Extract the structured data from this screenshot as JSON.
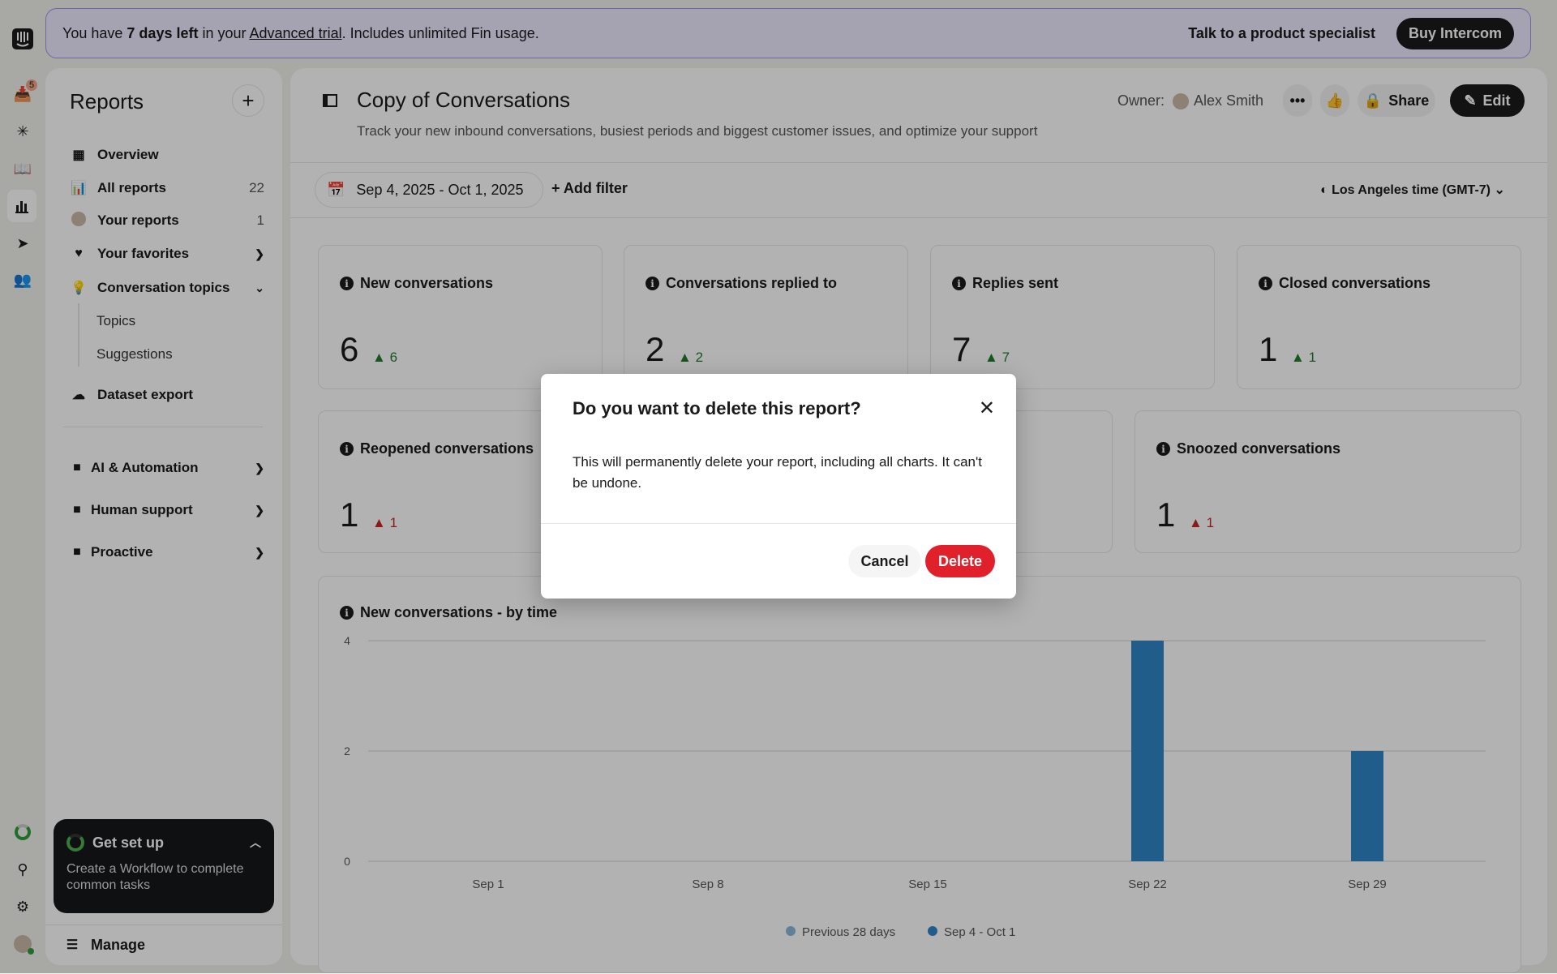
{
  "rail": {
    "inbox_badge": "5",
    "icons": [
      "intercom-logo",
      "inbox-icon",
      "fin-icon",
      "knowledge-icon",
      "reports-icon",
      "outbound-icon",
      "contacts-icon",
      "setup-progress-icon",
      "search-icon",
      "settings-icon",
      "avatar"
    ]
  },
  "banner": {
    "pre": "You have ",
    "bold": "7 days left",
    "mid": " in your ",
    "link": "Advanced trial",
    "post": ". Includes unlimited Fin usage.",
    "talk": "Talk to a product specialist",
    "buy": "Buy Intercom"
  },
  "sidebar": {
    "title": "Reports",
    "items": [
      {
        "label": "Overview",
        "icon": "grid-icon"
      },
      {
        "label": "All reports",
        "count": "22",
        "icon": "bar-chart-icon"
      },
      {
        "label": "Your reports",
        "count": "1",
        "icon": "avatar"
      },
      {
        "label": "Your favorites",
        "icon": "heart-icon"
      },
      {
        "label": "Conversation topics",
        "icon": "lightbulb-icon"
      }
    ],
    "subitems": [
      "Topics",
      "Suggestions"
    ],
    "dataset": "Dataset export",
    "folders": [
      "AI & Automation",
      "Human support",
      "Proactive"
    ],
    "setup": {
      "title": "Get set up",
      "desc": "Create a Workflow to complete common tasks"
    },
    "manage": "Manage"
  },
  "header": {
    "title": "Copy of Conversations",
    "subtitle": "Track your new inbound conversations, busiest periods and biggest customer issues, and optimize your support",
    "owner_label": "Owner:",
    "owner": "Alex Smith",
    "share": "Share",
    "edit": "Edit"
  },
  "filters": {
    "date_range": "Sep 4, 2025 - Oct 1, 2025",
    "add_filter": "Add filter",
    "timezone": "Los Angeles time (GMT-7)"
  },
  "cards": [
    {
      "title": "New conversations",
      "value": "6",
      "delta": "6",
      "trend": "up"
    },
    {
      "title": "Conversations replied to",
      "value": "2",
      "delta": "2",
      "trend": "up"
    },
    {
      "title": "Replies sent",
      "value": "7",
      "delta": "7",
      "trend": "up"
    },
    {
      "title": "Closed conversations",
      "value": "1",
      "delta": "1",
      "trend": "up"
    },
    {
      "title": "Reopened conversations",
      "value": "1",
      "delta": "1",
      "trend": "down"
    },
    {
      "title": "Snoozed conversations",
      "value": "1",
      "delta": "1",
      "trend": "down"
    }
  ],
  "colors": {
    "up": "#1d7f2a",
    "down": "#c62828",
    "bar": "#2f86c8",
    "previous": "#8ab8dc",
    "delete": "#e0202a"
  },
  "chart_data": {
    "type": "bar",
    "title": "New conversations - by time",
    "categories": [
      "Sep 1",
      "Sep 8",
      "Sep 15",
      "Sep 22",
      "Sep 29"
    ],
    "series": [
      {
        "name": "Previous 28 days",
        "values": [
          0,
          0,
          0,
          0,
          0
        ]
      },
      {
        "name": "Sep 4 - Oct 1",
        "values": [
          0,
          0,
          0,
          4,
          2
        ]
      }
    ],
    "yticks": [
      0,
      2,
      4
    ],
    "ylim": [
      0,
      4
    ],
    "grid": true,
    "legend": "bottom"
  },
  "modal": {
    "title": "Do you want to delete this report?",
    "body": "This will permanently delete your report, including all charts. It can't be undone.",
    "cancel": "Cancel",
    "delete": "Delete"
  }
}
